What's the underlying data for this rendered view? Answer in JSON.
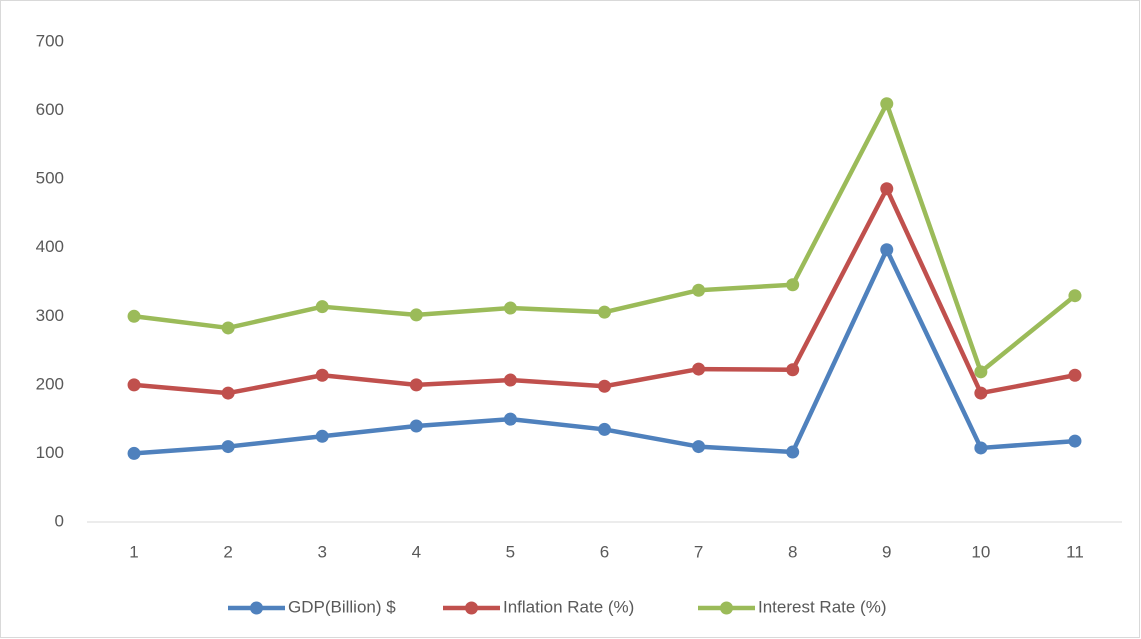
{
  "chart_data": {
    "type": "line",
    "categories": [
      "1",
      "2",
      "3",
      "4",
      "5",
      "6",
      "7",
      "8",
      "9",
      "10",
      "11"
    ],
    "series": [
      {
        "name": "GDP(Billion) $",
        "color": "#4f81bd",
        "values": [
          100,
          110,
          125,
          140,
          150,
          135,
          110,
          102,
          397,
          108,
          118
        ]
      },
      {
        "name": "Inflation Rate (%)",
        "color": "#c0504d",
        "values": [
          200,
          188,
          214,
          200,
          207,
          198,
          223,
          222,
          486,
          188,
          214
        ]
      },
      {
        "name": "Interest Rate (%)",
        "color": "#9bbb59",
        "values": [
          300,
          283,
          314,
          302,
          312,
          306,
          338,
          346,
          610,
          219,
          330
        ]
      }
    ],
    "ylim": [
      0,
      700
    ],
    "yticks": [
      0,
      100,
      200,
      300,
      400,
      500,
      600,
      700
    ],
    "grid": false,
    "legend": "bottom"
  }
}
